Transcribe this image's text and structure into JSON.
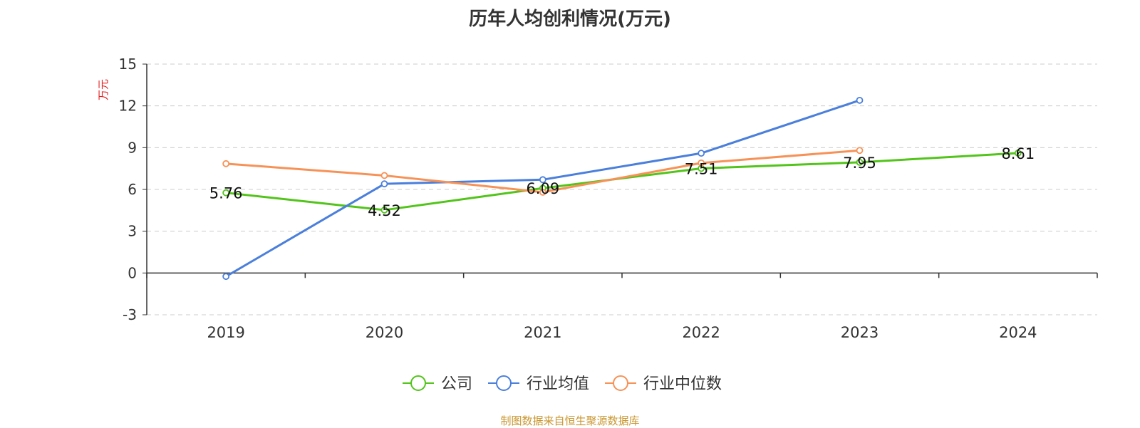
{
  "title": "历年人均创利情况(万元)",
  "source": "制图数据来自恒生聚源数据库",
  "colors": {
    "company": "#52c41a",
    "industry_avg": "#4a7fdc",
    "industry_median": "#f79257",
    "unit_label": "#e02020",
    "source": "#c9962f"
  },
  "chart_data": {
    "type": "line",
    "title": "历年人均创利情况(万元)",
    "ylabel": "万元",
    "xlabel": "",
    "ylim": [
      -3,
      15
    ],
    "yticks": [
      -3,
      0,
      3,
      6,
      9,
      12,
      15
    ],
    "categories": [
      "2019",
      "2020",
      "2021",
      "2022",
      "2023",
      "2024"
    ],
    "grid": true,
    "legend_position": "bottom",
    "series": [
      {
        "name": "公司",
        "color": "#52c41a",
        "values": [
          5.76,
          4.52,
          6.09,
          7.51,
          7.95,
          8.61
        ],
        "labels": [
          "5.76",
          "4.52",
          "6.09",
          "7.51",
          "7.95",
          "8.61"
        ]
      },
      {
        "name": "行业均值",
        "color": "#4a7fdc",
        "values": [
          -0.25,
          6.4,
          6.7,
          8.6,
          12.4,
          null
        ]
      },
      {
        "name": "行业中位数",
        "color": "#f79257",
        "values": [
          7.85,
          7.0,
          5.8,
          7.9,
          8.8,
          null
        ]
      }
    ]
  }
}
